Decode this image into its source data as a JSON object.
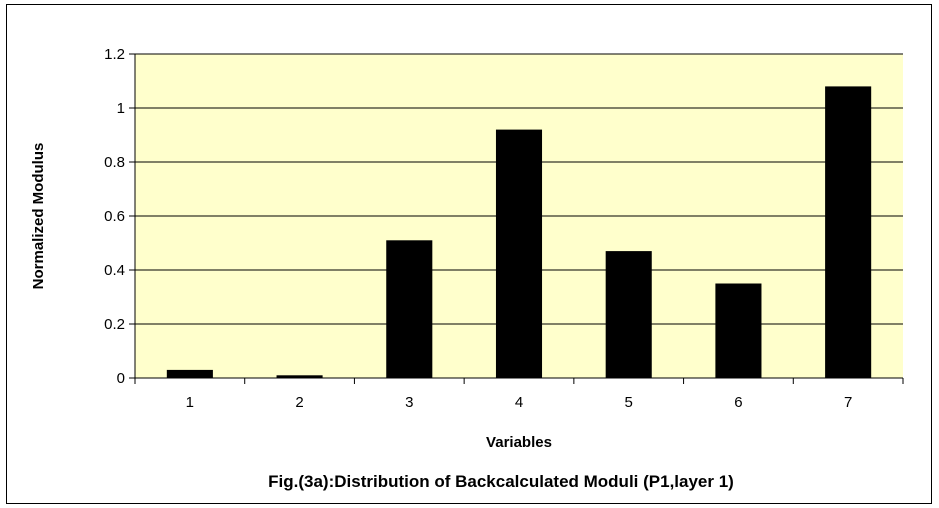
{
  "chart_data": {
    "type": "bar",
    "categories": [
      "1",
      "2",
      "3",
      "4",
      "5",
      "6",
      "7"
    ],
    "series": [
      {
        "values": [
          0.03,
          0.01,
          0.51,
          0.92,
          0.47,
          0.35,
          1.08
        ]
      }
    ],
    "xlabel": "Variables",
    "ylabel": "Normalized Modulus",
    "ylim": [
      0,
      1.2
    ],
    "yticks": [
      "0",
      "0.2",
      "0.4",
      "0.6",
      "0.8",
      "1",
      "1.2"
    ],
    "caption": "Fig.(3a):Distribution of Backcalculated Moduli (P1,layer 1)",
    "grid": true,
    "legend": "none",
    "colors": {
      "plot_background": "#ffffcc",
      "bar": "#000000",
      "gridline": "#000000"
    }
  }
}
